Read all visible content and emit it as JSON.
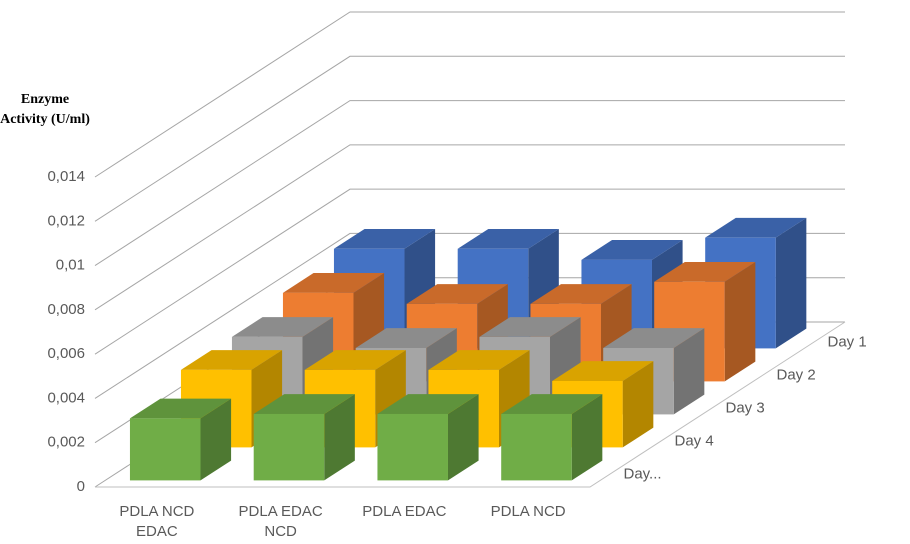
{
  "chart_data": {
    "type": "bar3d",
    "y_axis_label": "Enzyme Activity (U/ml)",
    "categories": [
      "PDLA NCD EDAC",
      "PDLA EDAC NCD",
      "PDLA EDAC",
      "PDLA NCD"
    ],
    "series": [
      {
        "name": "Day 1",
        "color": "#4472c4",
        "values": [
          0.0045,
          0.0045,
          0.004,
          0.005
        ]
      },
      {
        "name": "Day 2",
        "color": "#ed7d31",
        "values": [
          0.004,
          0.0035,
          0.0035,
          0.0045
        ]
      },
      {
        "name": "Day 3",
        "color": "#a5a5a5",
        "values": [
          0.0035,
          0.003,
          0.0035,
          0.003
        ]
      },
      {
        "name": "Day 4",
        "color": "#ffc000",
        "values": [
          0.0035,
          0.0035,
          0.0035,
          0.003
        ]
      },
      {
        "name": "Day...",
        "color": "#70ad47",
        "values": [
          0.0028,
          0.003,
          0.003,
          0.003
        ]
      }
    ],
    "ylim": [
      0,
      0.014
    ],
    "yticks": [
      0,
      {
        "value": 0.002,
        "label": "0,002"
      },
      {
        "value": 0.004,
        "label": "0,004"
      },
      {
        "value": 0.006,
        "label": "0,006"
      },
      {
        "value": 0.008,
        "label": "0,008"
      },
      {
        "value": 0.01,
        "label": "0,01"
      },
      {
        "value": 0.012,
        "label": "0,012"
      },
      {
        "value": 0.014,
        "label": "0,014"
      }
    ],
    "grid": true
  }
}
